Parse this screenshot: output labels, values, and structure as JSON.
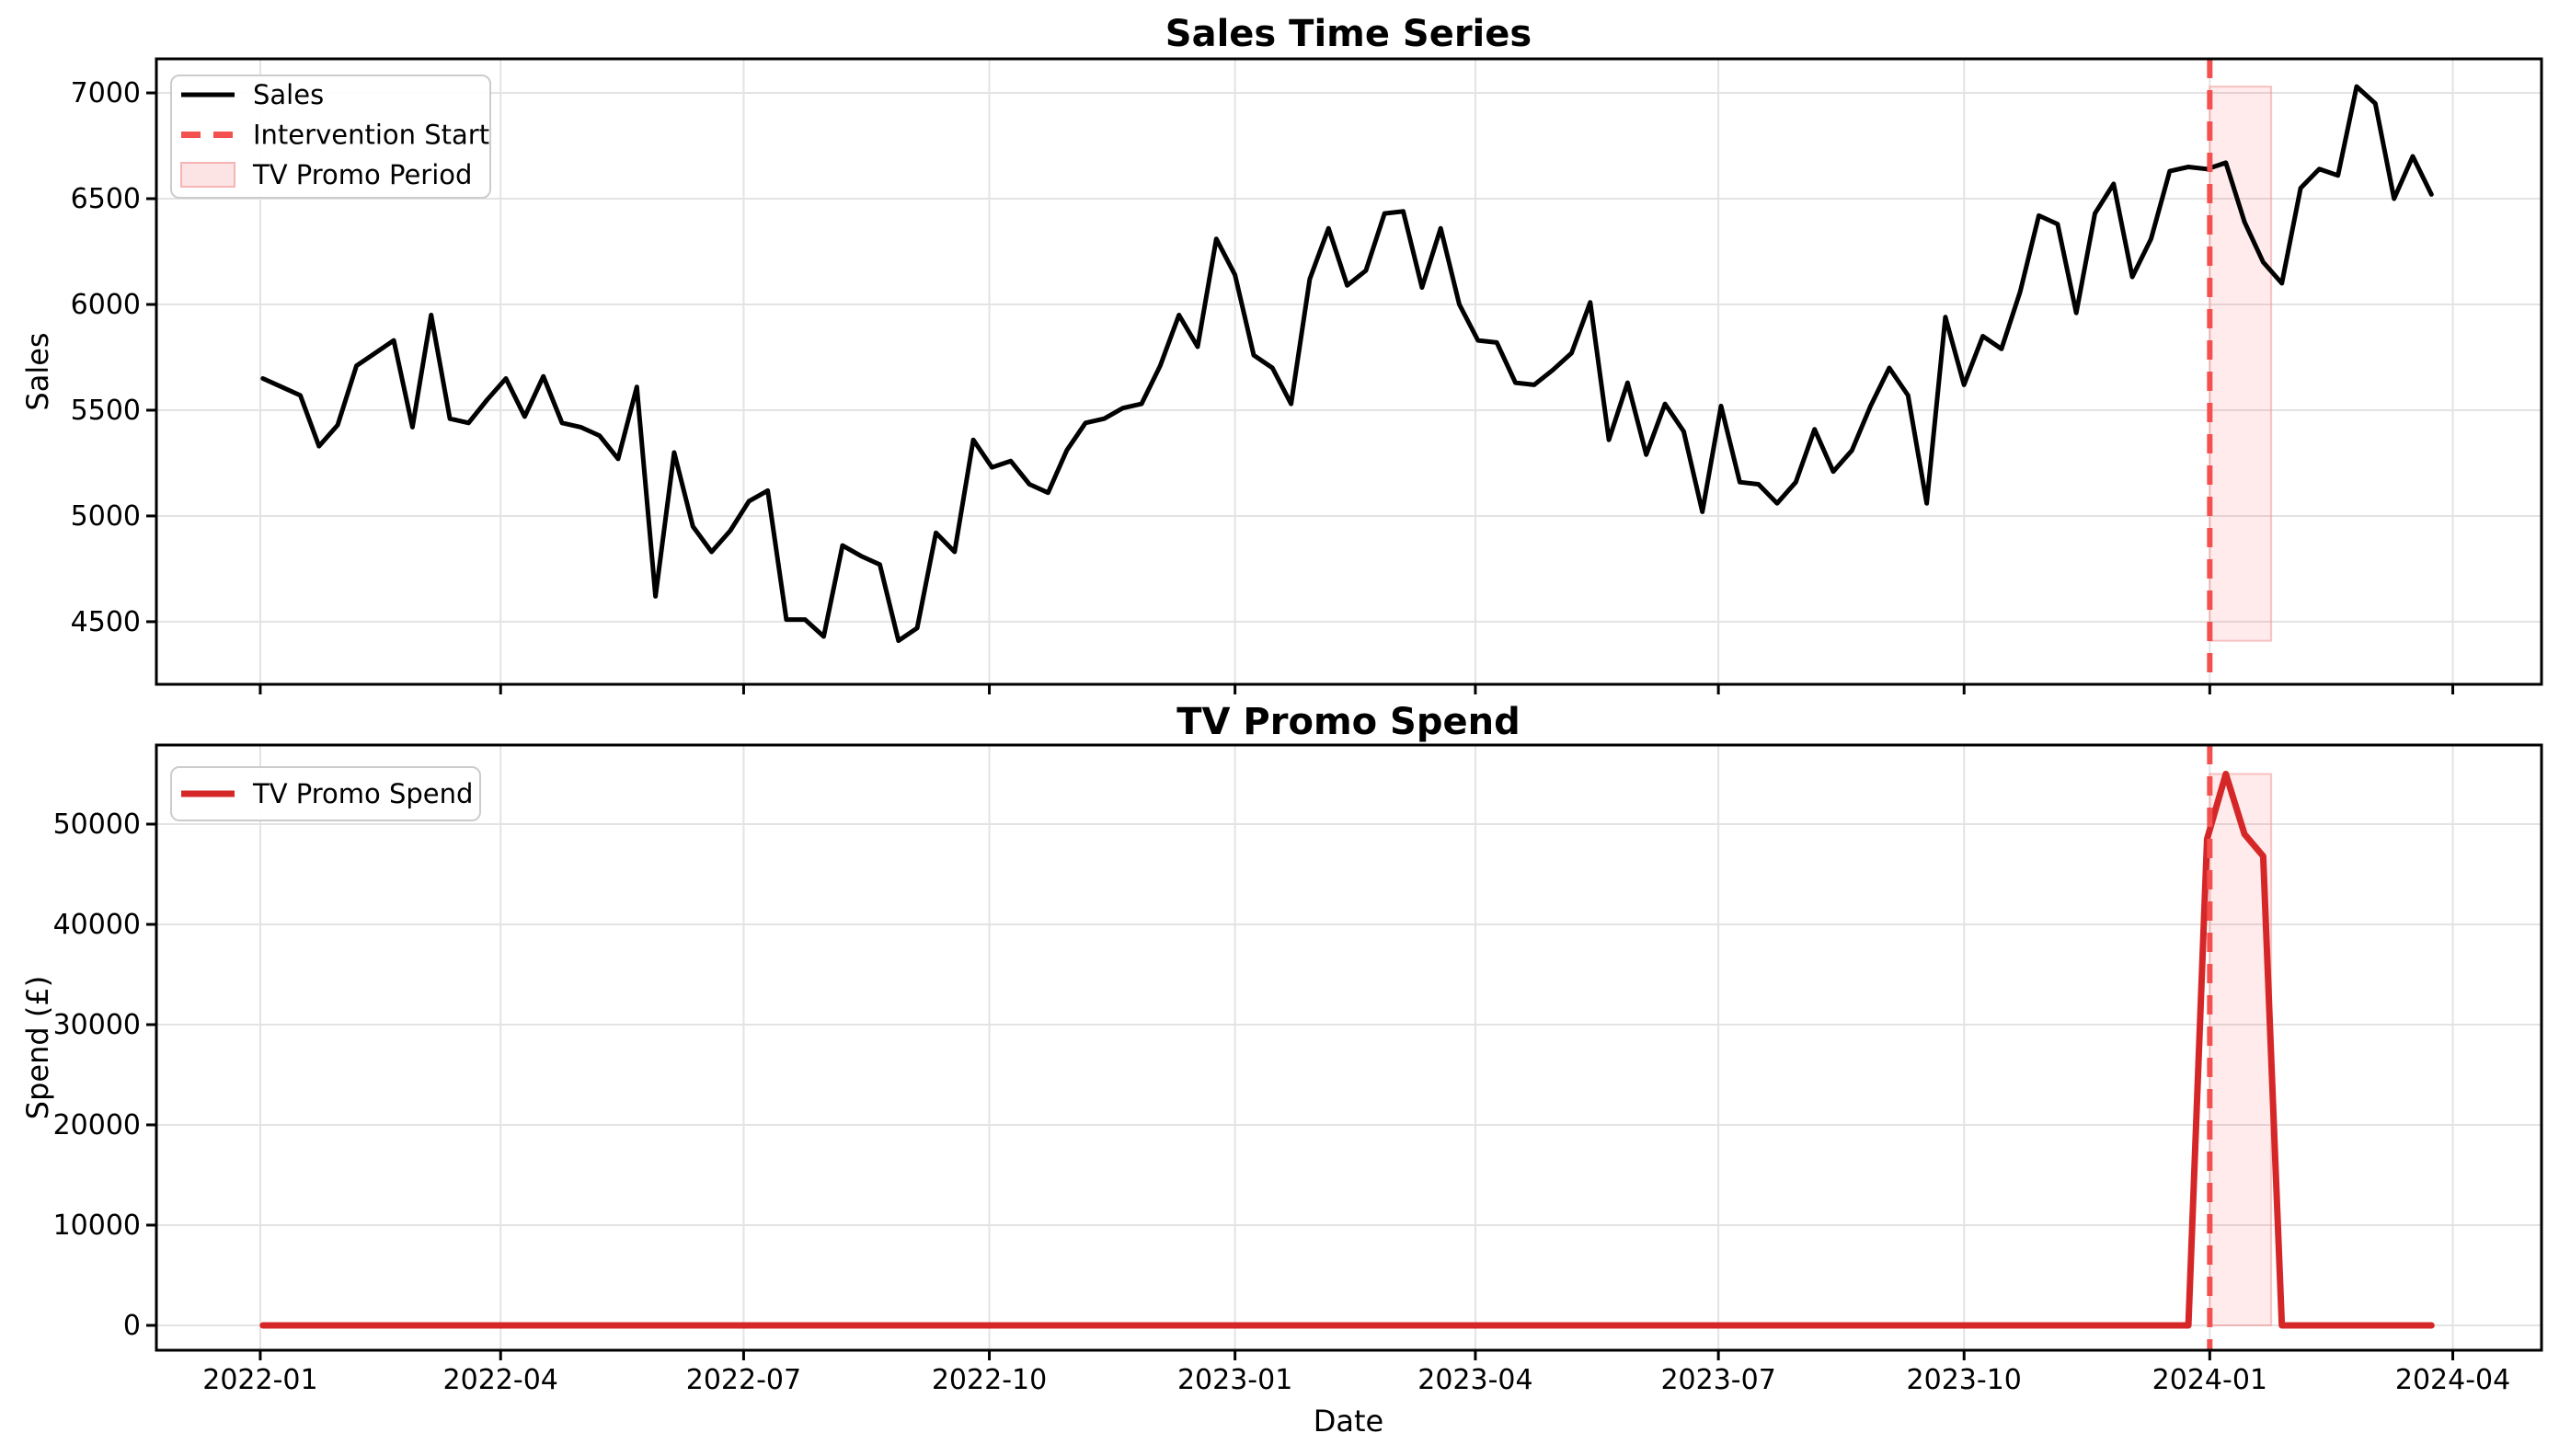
{
  "figure": {
    "background": "#ffffff",
    "grid_color": "#e3e3e3",
    "spine_color": "#000000",
    "text_color": "#000000"
  },
  "x_axis": {
    "label": "Date",
    "tick_labels": [
      "2022-01",
      "2022-04",
      "2022-07",
      "2022-10",
      "2023-01",
      "2023-04",
      "2023-07",
      "2023-10",
      "2024-01",
      "2024-04"
    ],
    "tick_day_offsets": [
      0,
      90,
      181,
      273,
      365,
      455,
      546,
      638,
      730,
      821
    ]
  },
  "chart_data": [
    {
      "type": "line",
      "title": "Sales Time Series",
      "ylabel": "Sales",
      "grid": true,
      "legend_position": "upper-left",
      "ylim": [
        4204,
        7161
      ],
      "y_ticks": [
        4500,
        5000,
        5500,
        6000,
        6500,
        7000
      ],
      "x_start_date": "2022-01-02",
      "x_interval_days": 7,
      "n_points": 117,
      "series": [
        {
          "name": "Sales",
          "color": "#000000",
          "values": [
            5650,
            5610,
            5570,
            5330,
            5430,
            5710,
            5770,
            5830,
            5420,
            5950,
            5460,
            5440,
            5550,
            5650,
            5470,
            5660,
            5440,
            5420,
            5380,
            5270,
            5610,
            4620,
            5300,
            4950,
            4830,
            4930,
            5070,
            5120,
            4510,
            4510,
            4430,
            4860,
            4810,
            4770,
            4410,
            4470,
            4920,
            4830,
            5360,
            5230,
            5260,
            5150,
            5110,
            5310,
            5440,
            5460,
            5510,
            5530,
            5710,
            5950,
            5800,
            6310,
            6140,
            5760,
            5700,
            5530,
            6120,
            6360,
            6090,
            6160,
            6430,
            6440,
            6080,
            6360,
            6000,
            5830,
            5820,
            5630,
            5620,
            5690,
            5770,
            6010,
            5360,
            5630,
            5290,
            5530,
            5400,
            5020,
            5520,
            5160,
            5150,
            5060,
            5160,
            5410,
            5210,
            5310,
            5520,
            5700,
            5570,
            5060,
            5940,
            5620,
            5850,
            5790,
            6060,
            6420,
            6380,
            5960,
            6430,
            6570,
            6130,
            6310,
            6630,
            6650,
            6640,
            6670,
            6390,
            6200,
            6100,
            6550,
            6640,
            6610,
            7030,
            6950,
            6500,
            6700,
            6520
          ]
        }
      ],
      "intervention": {
        "label": "Intervention Start",
        "date": "2024-01-01",
        "day_offset": 730,
        "color": "#f4504f",
        "style": "dashed"
      },
      "promo_band": {
        "label": "TV Promo Period",
        "start_date": "2024-01-01",
        "end_date": "2024-01-24",
        "day_span": [
          730,
          753
        ],
        "value_span": [
          4410,
          7030
        ],
        "fill": "rgba(255,60,60,0.10)",
        "edge": "rgba(243,150,150,0.55)"
      },
      "legend_entries": [
        {
          "label": "Sales",
          "swatch": "line",
          "color": "#000000"
        },
        {
          "label": "Intervention Start",
          "swatch": "dashed-line",
          "color": "#f4504f"
        },
        {
          "label": "TV Promo Period",
          "swatch": "band",
          "color": "#fde4e4",
          "edge": "#f5b5b5"
        }
      ]
    },
    {
      "type": "line",
      "title": "TV Promo Spend",
      "ylabel": "Spend (£)",
      "xlabel": "Date",
      "grid": true,
      "legend_position": "upper-left",
      "ylim": [
        -2480,
        57890
      ],
      "y_ticks": [
        0,
        10000,
        20000,
        30000,
        40000,
        50000
      ],
      "x_start_date": "2022-01-02",
      "x_interval_days": 7,
      "n_points": 117,
      "series": [
        {
          "name": "TV Promo Spend",
          "color": "#d62728",
          "values": [
            0,
            0,
            0,
            0,
            0,
            0,
            0,
            0,
            0,
            0,
            0,
            0,
            0,
            0,
            0,
            0,
            0,
            0,
            0,
            0,
            0,
            0,
            0,
            0,
            0,
            0,
            0,
            0,
            0,
            0,
            0,
            0,
            0,
            0,
            0,
            0,
            0,
            0,
            0,
            0,
            0,
            0,
            0,
            0,
            0,
            0,
            0,
            0,
            0,
            0,
            0,
            0,
            0,
            0,
            0,
            0,
            0,
            0,
            0,
            0,
            0,
            0,
            0,
            0,
            0,
            0,
            0,
            0,
            0,
            0,
            0,
            0,
            0,
            0,
            0,
            0,
            0,
            0,
            0,
            0,
            0,
            0,
            0,
            0,
            0,
            0,
            0,
            0,
            0,
            0,
            0,
            0,
            0,
            0,
            0,
            0,
            0,
            0,
            0,
            0,
            0,
            0,
            0,
            0,
            48500,
            55000,
            49000,
            46800,
            0,
            0,
            0,
            0,
            0,
            0,
            0,
            0,
            0
          ]
        }
      ],
      "intervention": {
        "label": "Intervention Start",
        "date": "2024-01-01",
        "day_offset": 730,
        "color": "#f4504f",
        "style": "dashed"
      },
      "promo_band": {
        "label": "TV Promo Period",
        "start_date": "2024-01-01",
        "end_date": "2024-01-24",
        "day_span": [
          730,
          753
        ],
        "value_span": [
          0,
          55000
        ],
        "fill": "rgba(255,60,60,0.10)",
        "edge": "rgba(243,150,150,0.55)"
      },
      "legend_entries": [
        {
          "label": "TV Promo Spend",
          "swatch": "line",
          "color": "#d62728"
        }
      ]
    }
  ]
}
